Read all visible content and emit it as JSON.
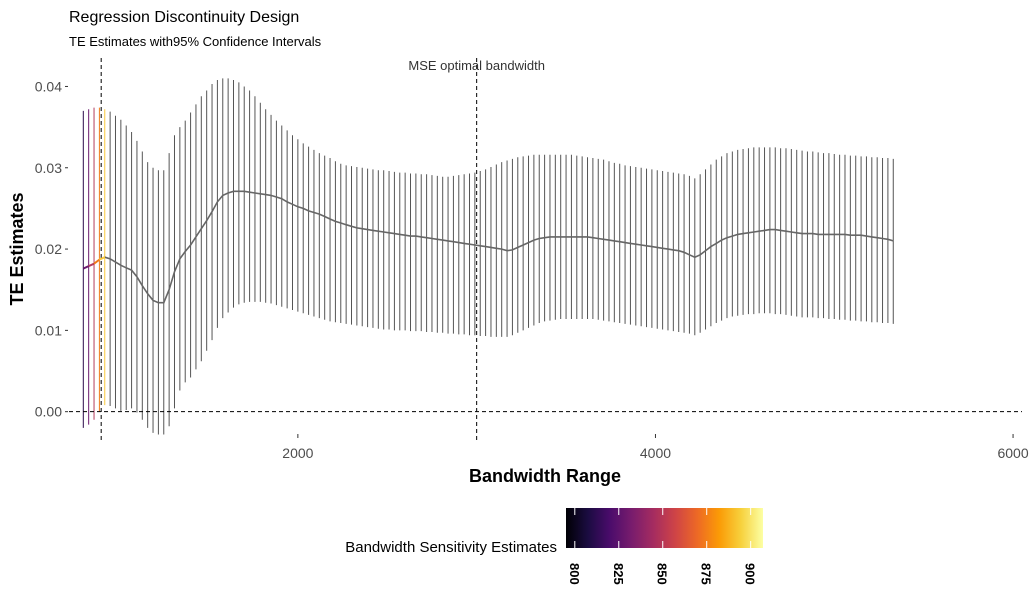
{
  "chart_data": {
    "type": "line",
    "title": "Regression Discontinuity Design",
    "subtitle": "TE Estimates with95% Confidence Intervals",
    "xlabel": "Bandwidth Range",
    "ylabel": "TE Estimates",
    "xlim": [
      720,
      6050
    ],
    "ylim": [
      -0.0025,
      0.0435
    ],
    "x_ticks": [
      2000,
      4000,
      6000
    ],
    "x_tick_labels": [
      "2000",
      "4000",
      "6000"
    ],
    "y_ticks": [
      0,
      0.01,
      0.02,
      0.03,
      0.04
    ],
    "y_tick_labels": [
      "0.00",
      "0.01",
      "0.02",
      "0.03",
      "0.04"
    ],
    "vlines": [
      {
        "x": 900,
        "label": ""
      },
      {
        "x": 3000,
        "label": "MSE optimal bandwidth"
      }
    ],
    "hline_y": 0,
    "grid": false,
    "legend_position": "bottom",
    "x_start": 800,
    "x_step": 30,
    "estimates": [
      0.0176,
      0.0179,
      0.0182,
      0.0187,
      0.019,
      0.0188,
      0.0184,
      0.018,
      0.0177,
      0.0174,
      0.0166,
      0.0155,
      0.0145,
      0.0137,
      0.0134,
      0.0134,
      0.015,
      0.0172,
      0.0188,
      0.0197,
      0.0205,
      0.0215,
      0.0225,
      0.0235,
      0.0246,
      0.0258,
      0.0266,
      0.0269,
      0.0271,
      0.0271,
      0.0271,
      0.027,
      0.0269,
      0.0268,
      0.0267,
      0.0266,
      0.0264,
      0.0262,
      0.0258,
      0.0255,
      0.0252,
      0.025,
      0.0247,
      0.0245,
      0.0243,
      0.024,
      0.0237,
      0.0234,
      0.0232,
      0.023,
      0.0228,
      0.0226,
      0.0225,
      0.0224,
      0.0223,
      0.0222,
      0.0221,
      0.022,
      0.0219,
      0.0218,
      0.0217,
      0.0216,
      0.0216,
      0.0215,
      0.0214,
      0.0213,
      0.0212,
      0.0211,
      0.021,
      0.0209,
      0.0208,
      0.0207,
      0.0206,
      0.0205,
      0.0204,
      0.0203,
      0.0202,
      0.0201,
      0.02,
      0.0198,
      0.0199,
      0.0202,
      0.0205,
      0.0208,
      0.0211,
      0.0213,
      0.0214,
      0.0215,
      0.0215,
      0.0215,
      0.0215,
      0.0215,
      0.0215,
      0.0215,
      0.0215,
      0.0214,
      0.0213,
      0.0212,
      0.0211,
      0.021,
      0.0209,
      0.0208,
      0.0207,
      0.0206,
      0.0205,
      0.0204,
      0.0203,
      0.0202,
      0.0201,
      0.02,
      0.0199,
      0.0198,
      0.0196,
      0.0193,
      0.019,
      0.0193,
      0.0198,
      0.0203,
      0.0207,
      0.0211,
      0.0214,
      0.0216,
      0.0218,
      0.0219,
      0.022,
      0.0221,
      0.0222,
      0.0223,
      0.0224,
      0.0224,
      0.0223,
      0.0222,
      0.0221,
      0.022,
      0.0219,
      0.0219,
      0.0219,
      0.0218,
      0.0218,
      0.0218,
      0.0218,
      0.0218,
      0.0218,
      0.0217,
      0.0217,
      0.0217,
      0.0216,
      0.0215,
      0.0214,
      0.0213,
      0.0212,
      0.021
    ],
    "upper": [
      0.037,
      0.0372,
      0.0374,
      0.0374,
      0.0372,
      0.0369,
      0.0364,
      0.0359,
      0.0352,
      0.0344,
      0.0333,
      0.032,
      0.0307,
      0.03,
      0.0297,
      0.0297,
      0.0318,
      0.034,
      0.035,
      0.0358,
      0.0368,
      0.0378,
      0.0388,
      0.0395,
      0.0403,
      0.0408,
      0.041,
      0.041,
      0.0408,
      0.0405,
      0.04,
      0.0395,
      0.0388,
      0.038,
      0.0372,
      0.0365,
      0.0358,
      0.0352,
      0.0346,
      0.034,
      0.0335,
      0.033,
      0.0326,
      0.0322,
      0.0318,
      0.0315,
      0.0312,
      0.0308,
      0.0305,
      0.0303,
      0.0302,
      0.0301,
      0.03,
      0.0299,
      0.0298,
      0.0297,
      0.0297,
      0.0296,
      0.0295,
      0.0294,
      0.0294,
      0.0293,
      0.0293,
      0.0292,
      0.0292,
      0.0291,
      0.029,
      0.0289,
      0.0289,
      0.029,
      0.0291,
      0.0292,
      0.0293,
      0.0294,
      0.0296,
      0.0298,
      0.0301,
      0.0304,
      0.0307,
      0.0309,
      0.0311,
      0.0313,
      0.0314,
      0.0315,
      0.0316,
      0.0316,
      0.0316,
      0.0316,
      0.0316,
      0.0316,
      0.0316,
      0.0316,
      0.0315,
      0.0314,
      0.0313,
      0.0312,
      0.0311,
      0.031,
      0.0308,
      0.0306,
      0.0305,
      0.0303,
      0.0302,
      0.0301,
      0.03,
      0.0299,
      0.0298,
      0.0297,
      0.0296,
      0.0295,
      0.0294,
      0.0293,
      0.0292,
      0.029,
      0.0287,
      0.0292,
      0.0298,
      0.0304,
      0.031,
      0.0314,
      0.0318,
      0.032,
      0.0322,
      0.0323,
      0.0324,
      0.0325,
      0.0325,
      0.0325,
      0.0325,
      0.0325,
      0.0324,
      0.0324,
      0.0323,
      0.0322,
      0.0321,
      0.032,
      0.032,
      0.0319,
      0.0318,
      0.0318,
      0.0317,
      0.0316,
      0.0316,
      0.0315,
      0.0315,
      0.0314,
      0.0314,
      0.0313,
      0.0313,
      0.0312,
      0.0312,
      0.0311
    ],
    "lower": [
      -0.002,
      -0.0016,
      -0.001,
      0.0,
      0.0008,
      0.0007,
      0.0004,
      0.0001,
      0.0002,
      0.0004,
      -0.0001,
      -0.001,
      -0.002,
      -0.0026,
      -0.0028,
      -0.0028,
      -0.0018,
      0.0004,
      0.0026,
      0.0036,
      0.0042,
      0.0052,
      0.0062,
      0.0075,
      0.0088,
      0.0103,
      0.0115,
      0.0122,
      0.0128,
      0.0132,
      0.0134,
      0.0135,
      0.0135,
      0.0135,
      0.0134,
      0.0133,
      0.0131,
      0.0129,
      0.0127,
      0.0125,
      0.0123,
      0.0121,
      0.0119,
      0.0117,
      0.0115,
      0.0113,
      0.0111,
      0.011,
      0.0109,
      0.0108,
      0.0107,
      0.0106,
      0.0105,
      0.0104,
      0.0103,
      0.0102,
      0.0101,
      0.0101,
      0.01,
      0.01,
      0.01,
      0.0099,
      0.0099,
      0.0099,
      0.0098,
      0.0098,
      0.0097,
      0.0097,
      0.0096,
      0.0096,
      0.0095,
      0.0095,
      0.0094,
      0.0094,
      0.0093,
      0.0093,
      0.0092,
      0.0092,
      0.0092,
      0.0092,
      0.0094,
      0.0097,
      0.01,
      0.0103,
      0.0106,
      0.0109,
      0.0111,
      0.0112,
      0.0113,
      0.0114,
      0.0114,
      0.0114,
      0.0114,
      0.0114,
      0.0114,
      0.0114,
      0.0113,
      0.0112,
      0.0111,
      0.011,
      0.0109,
      0.0108,
      0.0107,
      0.0106,
      0.0105,
      0.0104,
      0.0103,
      0.0102,
      0.0101,
      0.01,
      0.0099,
      0.0098,
      0.0097,
      0.0096,
      0.0094,
      0.0097,
      0.0101,
      0.0105,
      0.0109,
      0.0112,
      0.0115,
      0.0117,
      0.0118,
      0.0119,
      0.012,
      0.012,
      0.0121,
      0.0121,
      0.0121,
      0.012,
      0.012,
      0.0119,
      0.0118,
      0.0117,
      0.0116,
      0.0116,
      0.0116,
      0.0115,
      0.0115,
      0.0114,
      0.0114,
      0.0113,
      0.0113,
      0.0112,
      0.0112,
      0.0111,
      0.0111,
      0.011,
      0.011,
      0.0109,
      0.0109,
      0.0108
    ],
    "highlight_count": 5,
    "highlight_colors": [
      "#2b0a4a",
      "#6b1a6e",
      "#b43c5c",
      "#f07a1a",
      "#f9c93b"
    ],
    "color_legend": {
      "title": "Bandwidth Sensitivity Estimates",
      "min": 795,
      "max": 907,
      "ticks": [
        800,
        825,
        850,
        875,
        900
      ],
      "tick_labels": [
        "800",
        "825",
        "850",
        "875",
        "900"
      ],
      "colors": [
        "#000004",
        "#1b0c41",
        "#4a0c6b",
        "#781c6d",
        "#a52c60",
        "#cf4446",
        "#ed6925",
        "#fb9b06",
        "#f7d13d",
        "#fcffa4"
      ]
    },
    "line_color": "#666666",
    "bar_color": "#555555"
  }
}
